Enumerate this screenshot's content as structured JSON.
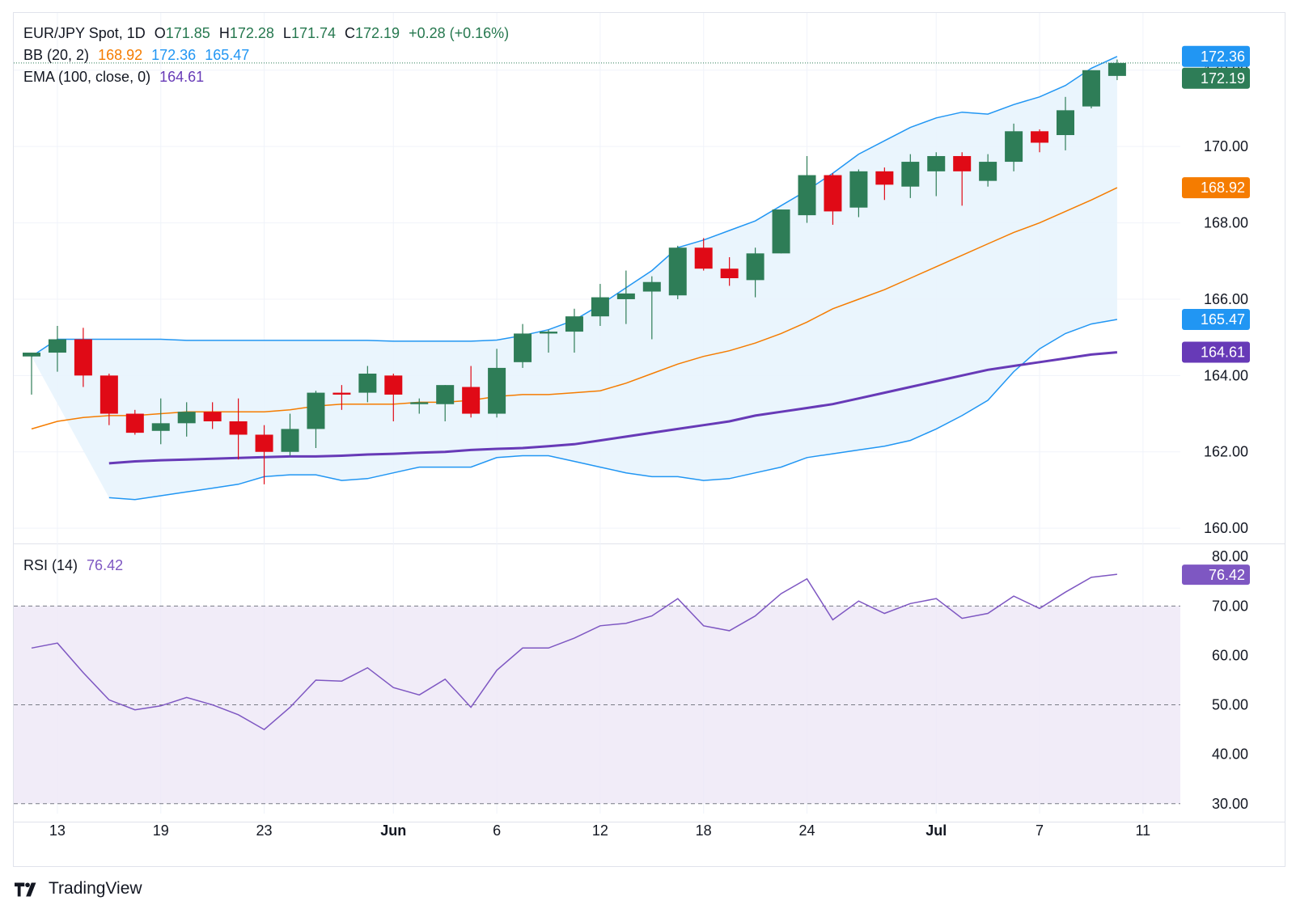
{
  "header": {
    "symbol": "EUR/JPY Spot, 1D",
    "ohlc": {
      "o_label": "O",
      "o": "171.85",
      "h_label": "H",
      "h": "172.28",
      "l_label": "L",
      "l": "171.74",
      "c_label": "C",
      "c": "172.19",
      "change": "+0.28 (+0.16%)"
    },
    "bb": {
      "label": "BB (20, 2)",
      "middle": "168.92",
      "upper": "172.36",
      "lower": "165.47"
    },
    "ema": {
      "label": "EMA (100, close, 0)",
      "value": "164.61"
    },
    "rsi": {
      "label": "RSI (14)",
      "value": "76.42"
    }
  },
  "colors": {
    "up": "#2e7d57",
    "down": "#e00a16",
    "bb_band": "#2196f3",
    "bb_mid": "#f57c00",
    "bb_fill": "#e8f4fd",
    "ema": "#673ab7",
    "rsi": "#7e57c2",
    "rsi_fill": "#ede7f6",
    "grid": "#f0f3fa",
    "last_price": "#2e7d57"
  },
  "price_axis": {
    "ticks": [
      "172.00",
      "170.00",
      "168.00",
      "166.00",
      "164.00",
      "162.00",
      "160.00"
    ],
    "badges": [
      {
        "value": "172.36",
        "color": "#2196f3"
      },
      {
        "value": "172.19",
        "color": "#2e7d57"
      },
      {
        "value": "168.92",
        "color": "#f57c00"
      },
      {
        "value": "165.47",
        "color": "#2196f3"
      },
      {
        "value": "164.61",
        "color": "#673ab7"
      }
    ]
  },
  "rsi_axis": {
    "ticks": [
      "80.00",
      "70.00",
      "60.00",
      "50.00",
      "40.00",
      "30.00"
    ],
    "badge": {
      "value": "76.42",
      "color": "#7e57c2"
    }
  },
  "time_axis": {
    "labels": [
      "13",
      "19",
      "23",
      "Jun",
      "6",
      "12",
      "18",
      "24",
      "Jul",
      "7",
      "11"
    ],
    "bold": [
      "Jun",
      "Jul"
    ]
  },
  "chart_data": {
    "type": "candlestick",
    "title": "EUR/JPY Spot, 1D",
    "price_range": [
      159.6,
      173.5
    ],
    "rsi_range": [
      28,
      82
    ],
    "rsi_levels": [
      30,
      50,
      70
    ],
    "label_indices": [
      1,
      5,
      9,
      14,
      18,
      22,
      26,
      30,
      35,
      39,
      43
    ],
    "candles": [
      {
        "o": 164.5,
        "h": 164.6,
        "l": 163.5,
        "c": 164.6
      },
      {
        "o": 164.6,
        "h": 165.3,
        "l": 164.1,
        "c": 164.95
      },
      {
        "o": 164.95,
        "h": 165.25,
        "l": 163.7,
        "c": 164.0
      },
      {
        "o": 164.0,
        "h": 164.05,
        "l": 162.7,
        "c": 163.0
      },
      {
        "o": 163.0,
        "h": 163.1,
        "l": 162.45,
        "c": 162.5
      },
      {
        "o": 162.55,
        "h": 163.4,
        "l": 162.2,
        "c": 162.75
      },
      {
        "o": 162.75,
        "h": 163.3,
        "l": 162.4,
        "c": 163.05
      },
      {
        "o": 163.05,
        "h": 163.3,
        "l": 162.6,
        "c": 162.8
      },
      {
        "o": 162.8,
        "h": 163.4,
        "l": 161.8,
        "c": 162.45
      },
      {
        "o": 162.45,
        "h": 162.7,
        "l": 161.15,
        "c": 162.0
      },
      {
        "o": 162.0,
        "h": 163.0,
        "l": 161.9,
        "c": 162.6
      },
      {
        "o": 162.6,
        "h": 163.6,
        "l": 162.1,
        "c": 163.55
      },
      {
        "o": 163.55,
        "h": 163.75,
        "l": 163.1,
        "c": 163.5
      },
      {
        "o": 163.55,
        "h": 164.25,
        "l": 163.3,
        "c": 164.05
      },
      {
        "o": 164.0,
        "h": 164.05,
        "l": 162.8,
        "c": 163.5
      },
      {
        "o": 163.25,
        "h": 163.4,
        "l": 163.0,
        "c": 163.3
      },
      {
        "o": 163.25,
        "h": 163.75,
        "l": 162.8,
        "c": 163.75
      },
      {
        "o": 163.7,
        "h": 164.25,
        "l": 162.9,
        "c": 163.0
      },
      {
        "o": 163.0,
        "h": 164.7,
        "l": 162.9,
        "c": 164.2
      },
      {
        "o": 164.35,
        "h": 165.35,
        "l": 164.2,
        "c": 165.1
      },
      {
        "o": 165.1,
        "h": 165.2,
        "l": 164.6,
        "c": 165.15
      },
      {
        "o": 165.15,
        "h": 165.75,
        "l": 164.6,
        "c": 165.55
      },
      {
        "o": 165.55,
        "h": 166.4,
        "l": 165.3,
        "c": 166.05
      },
      {
        "o": 166.0,
        "h": 166.75,
        "l": 165.35,
        "c": 166.15
      },
      {
        "o": 166.2,
        "h": 166.6,
        "l": 164.95,
        "c": 166.45
      },
      {
        "o": 166.1,
        "h": 167.4,
        "l": 166.0,
        "c": 167.35
      },
      {
        "o": 167.35,
        "h": 167.6,
        "l": 166.75,
        "c": 166.8
      },
      {
        "o": 166.8,
        "h": 167.1,
        "l": 166.35,
        "c": 166.55
      },
      {
        "o": 166.5,
        "h": 167.35,
        "l": 166.05,
        "c": 167.2
      },
      {
        "o": 167.2,
        "h": 168.35,
        "l": 167.2,
        "c": 168.35
      },
      {
        "o": 168.2,
        "h": 169.75,
        "l": 168.0,
        "c": 169.25
      },
      {
        "o": 169.25,
        "h": 169.3,
        "l": 167.95,
        "c": 168.3
      },
      {
        "o": 168.4,
        "h": 169.4,
        "l": 168.15,
        "c": 169.35
      },
      {
        "o": 169.35,
        "h": 169.45,
        "l": 168.6,
        "c": 169.0
      },
      {
        "o": 168.95,
        "h": 169.8,
        "l": 168.65,
        "c": 169.6
      },
      {
        "o": 169.35,
        "h": 169.85,
        "l": 168.7,
        "c": 169.75
      },
      {
        "o": 169.75,
        "h": 169.85,
        "l": 168.45,
        "c": 169.35
      },
      {
        "o": 169.1,
        "h": 169.8,
        "l": 168.95,
        "c": 169.6
      },
      {
        "o": 169.6,
        "h": 170.6,
        "l": 169.35,
        "c": 170.4
      },
      {
        "o": 170.4,
        "h": 170.45,
        "l": 169.85,
        "c": 170.1
      },
      {
        "o": 170.3,
        "h": 171.3,
        "l": 169.9,
        "c": 170.95
      },
      {
        "o": 171.05,
        "h": 172.0,
        "l": 171.0,
        "c": 172.0
      },
      {
        "o": 171.85,
        "h": 172.28,
        "l": 171.74,
        "c": 172.19
      }
    ],
    "bb_upper": [
      164.5,
      164.95,
      164.95,
      164.95,
      164.95,
      164.95,
      164.92,
      164.92,
      164.92,
      164.92,
      164.92,
      164.92,
      164.92,
      164.92,
      164.9,
      164.9,
      164.9,
      164.9,
      164.93,
      165.05,
      165.2,
      165.45,
      165.85,
      166.3,
      166.75,
      167.35,
      167.55,
      167.8,
      168.05,
      168.45,
      168.85,
      169.3,
      169.8,
      170.15,
      170.5,
      170.75,
      170.9,
      170.85,
      171.1,
      171.3,
      171.6,
      172.05,
      172.36
    ],
    "bb_mid": [
      162.6,
      162.8,
      162.9,
      162.95,
      162.95,
      163.0,
      163.05,
      163.05,
      163.05,
      163.05,
      163.1,
      163.2,
      163.25,
      163.25,
      163.25,
      163.3,
      163.3,
      163.35,
      163.45,
      163.5,
      163.5,
      163.55,
      163.6,
      163.8,
      164.05,
      164.3,
      164.5,
      164.65,
      164.85,
      165.1,
      165.4,
      165.75,
      166.0,
      166.25,
      166.55,
      166.85,
      167.15,
      167.45,
      167.75,
      168.0,
      168.3,
      168.6,
      168.92
    ],
    "bb_lower": [
      160.8,
      160.75,
      160.85,
      160.95,
      161.05,
      161.15,
      161.35,
      161.4,
      161.4,
      161.25,
      161.3,
      161.45,
      161.6,
      161.6,
      161.6,
      161.85,
      161.9,
      161.9,
      161.75,
      161.6,
      161.45,
      161.35,
      161.35,
      161.25,
      161.3,
      161.45,
      161.6,
      161.85,
      161.95,
      162.05,
      162.15,
      162.3,
      162.6,
      162.95,
      163.35,
      164.1,
      164.7,
      165.1,
      165.35,
      165.47
    ],
    "bb_lower_start": 3,
    "ema": [
      161.7,
      161.75,
      161.78,
      161.8,
      161.82,
      161.84,
      161.86,
      161.88,
      161.88,
      161.9,
      161.93,
      161.95,
      161.98,
      162.0,
      162.05,
      162.08,
      162.1,
      162.15,
      162.2,
      162.3,
      162.4,
      162.5,
      162.6,
      162.7,
      162.8,
      162.95,
      163.05,
      163.15,
      163.25,
      163.4,
      163.55,
      163.7,
      163.85,
      164.0,
      164.15,
      164.25,
      164.35,
      164.45,
      164.55,
      164.61
    ],
    "ema_start": 3,
    "rsi": [
      61.5,
      62.5,
      56.5,
      51.0,
      49.0,
      49.8,
      51.5,
      50.0,
      48.0,
      45.0,
      49.5,
      55.0,
      54.8,
      57.5,
      53.5,
      52.0,
      55.2,
      49.5,
      57.0,
      61.5,
      61.5,
      63.5,
      66.0,
      66.5,
      68.0,
      71.5,
      66.0,
      65.0,
      68.0,
      72.5,
      75.5,
      67.2,
      71.0,
      68.5,
      70.5,
      71.5,
      67.5,
      68.5,
      72.0,
      69.5,
      72.8,
      75.8,
      76.42
    ]
  }
}
